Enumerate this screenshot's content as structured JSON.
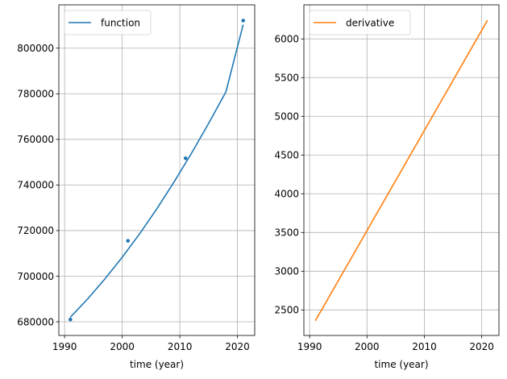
{
  "chart_data": [
    {
      "type": "line",
      "xlabel": "time (year)",
      "ylabel": "",
      "xlim": [
        1989,
        2023
      ],
      "ylim": [
        674000,
        819000
      ],
      "xticks": [
        1990,
        2000,
        2010,
        2020
      ],
      "yticks": [
        680000,
        700000,
        720000,
        740000,
        760000,
        780000,
        800000
      ],
      "xtick_labels": [
        "1990",
        "2000",
        "2010",
        "2020"
      ],
      "ytick_labels": [
        "680000",
        "700000",
        "720000",
        "740000",
        "760000",
        "780000",
        "800000"
      ],
      "grid": true,
      "legend": "top-left",
      "series": [
        {
          "name": "function",
          "kind": "line",
          "color": "#1f77b4",
          "x": [
            1991,
            1994,
            1997,
            2000,
            2003,
            2006,
            2009,
            2012,
            2015,
            2018,
            2021
          ],
          "y": [
            682000,
            690000,
            698800,
            708300,
            718500,
            729500,
            741300,
            753800,
            767000,
            780800,
            810300
          ]
        },
        {
          "name": "",
          "kind": "scatter",
          "color": "#1f77b4",
          "x": [
            1991,
            2001,
            2011,
            2021
          ],
          "y": [
            681000,
            715500,
            751700,
            812100
          ]
        }
      ]
    },
    {
      "type": "line",
      "xlabel": "time (year)",
      "ylabel": "",
      "xlim": [
        1989,
        2023
      ],
      "ylim": [
        2170,
        6440
      ],
      "xticks": [
        1990,
        2000,
        2010,
        2020
      ],
      "yticks": [
        2500,
        3000,
        3500,
        4000,
        4500,
        5000,
        5500,
        6000
      ],
      "xtick_labels": [
        "1990",
        "2000",
        "2010",
        "2020"
      ],
      "ytick_labels": [
        "2500",
        "3000",
        "3500",
        "4000",
        "4500",
        "5000",
        "5500",
        "6000"
      ],
      "grid": true,
      "legend": "top-left",
      "series": [
        {
          "name": "derivative",
          "kind": "line",
          "color": "#ff7f0e",
          "x": [
            1991,
            2021
          ],
          "y": [
            2360,
            6240
          ]
        }
      ]
    }
  ]
}
